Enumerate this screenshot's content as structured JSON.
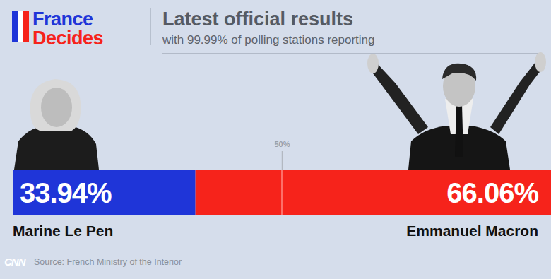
{
  "chart_data": {
    "type": "bar",
    "orientation": "horizontal",
    "stacked": true,
    "data_labels": true,
    "tick_labels": "x",
    "grid": false,
    "title": "Latest official results",
    "subtitle": "with 99.99% of polling stations reporting",
    "annotations": [
      "France",
      "Decides",
      "CNN",
      "Source: French Ministry of the Interior"
    ],
    "categories": [
      null
    ],
    "series": [
      {
        "name": "Marine Le Pen",
        "color": "#1f35d8",
        "values": [
          33.94
        ],
        "value_labels": [
          "33.94%"
        ]
      },
      {
        "name": "Emmanuel Macron",
        "color": "#f6231b",
        "values": [
          66.06
        ],
        "value_labels": [
          "66.06%"
        ]
      }
    ],
    "xlim": [
      0,
      100
    ],
    "xticks": [
      {
        "value": 50,
        "label": "50%"
      }
    ]
  }
}
